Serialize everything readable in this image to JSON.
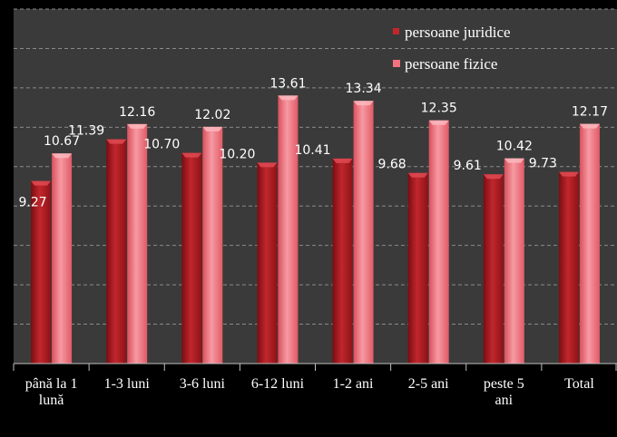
{
  "chart_data": {
    "type": "bar",
    "categories": [
      [
        "până la 1",
        "lună"
      ],
      [
        "1-3 luni"
      ],
      [
        "3-6 luni"
      ],
      [
        "6-12 luni"
      ],
      [
        "1-2 ani"
      ],
      [
        "2-5 ani"
      ],
      [
        "peste 5",
        "ani"
      ],
      [
        "Total"
      ]
    ],
    "series": [
      {
        "name": "persoane juridice",
        "color": "#c0272d",
        "values": [
          9.27,
          11.39,
          10.7,
          10.2,
          10.41,
          9.68,
          9.61,
          9.73
        ],
        "labels": [
          "9.27",
          "11.39",
          "10.70",
          "10.20",
          "10.41",
          "9.68",
          "9.61",
          "9.73"
        ]
      },
      {
        "name": "persoane fizice",
        "color": "#f2727e",
        "values": [
          10.67,
          12.16,
          12.02,
          13.61,
          13.34,
          12.35,
          10.42,
          12.17
        ],
        "labels": [
          "10.67",
          "12.16",
          "12.02",
          "13.61",
          "13.34",
          "12.35",
          "10.42",
          "12.17"
        ]
      }
    ],
    "ylim": [
      0,
      18
    ],
    "grid": true,
    "legend_position": "top-right"
  }
}
